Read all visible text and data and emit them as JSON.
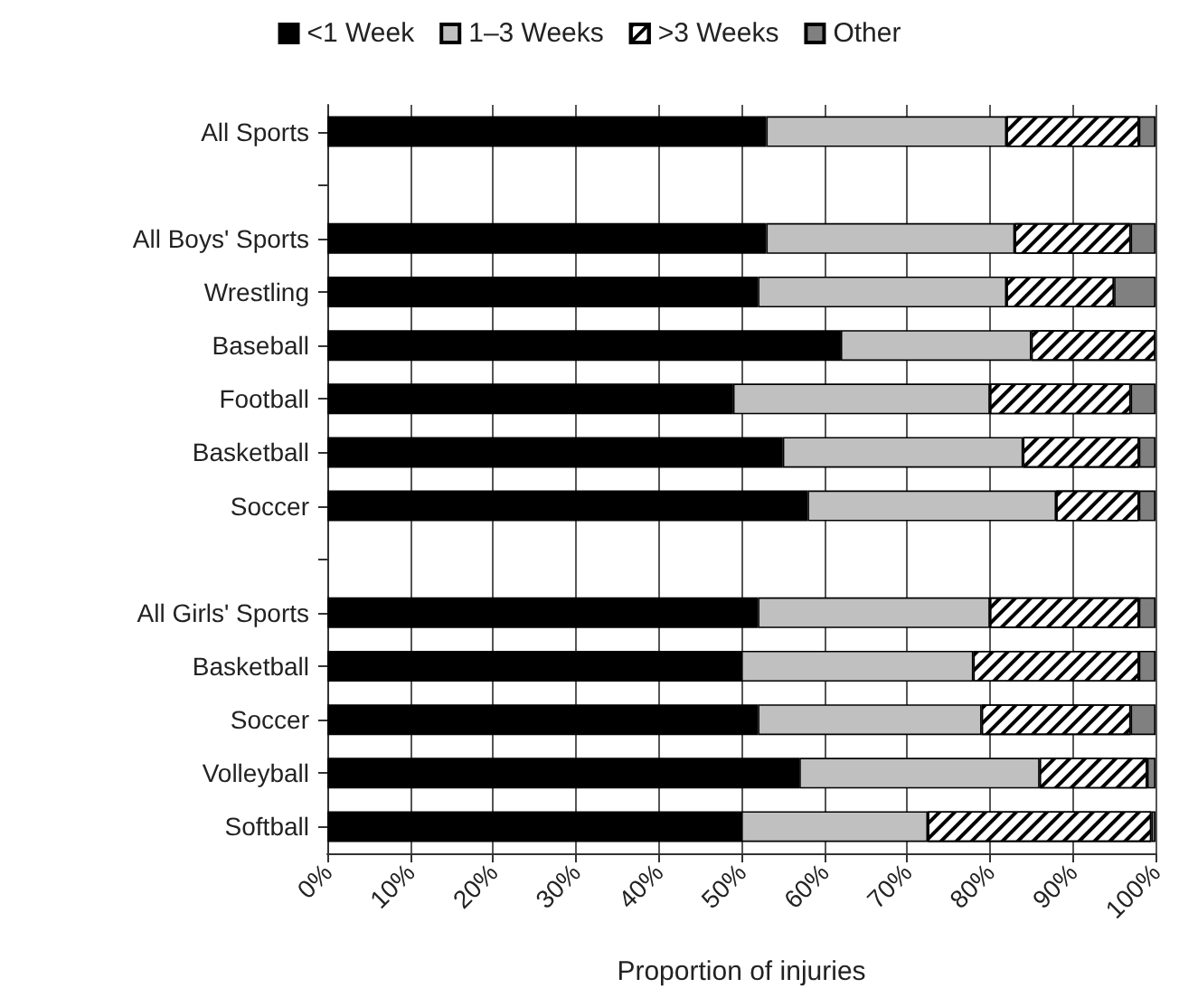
{
  "chart_data": {
    "type": "bar",
    "orientation": "horizontal",
    "stacked": true,
    "xlabel": "Proportion of injuries",
    "categories": [
      "All Sports",
      null,
      "All Boys' Sports",
      "Wrestling",
      "Baseball",
      "Football",
      "Basketball",
      "Soccer",
      null,
      "All Girls' Sports",
      "Basketball",
      "Soccer",
      "Volleyball",
      "Softball"
    ],
    "series": [
      {
        "name": "<1 Week",
        "color": "#000000",
        "values": [
          53,
          null,
          53,
          52,
          62,
          49,
          55,
          58,
          null,
          52,
          50,
          52,
          57,
          50
        ]
      },
      {
        "name": "1–3 Weeks",
        "color": "#c0c0c0",
        "values": [
          29,
          null,
          30,
          30,
          23,
          31,
          29,
          30,
          null,
          28,
          28,
          27,
          29,
          22.5
        ]
      },
      {
        "name": ">3 Weeks",
        "color": "#ffffff",
        "values": [
          16,
          null,
          14,
          13,
          15,
          17,
          14,
          10,
          null,
          18,
          20,
          18,
          13,
          27
        ]
      },
      {
        "name": "Other",
        "color": "#808080",
        "values": [
          2,
          null,
          3,
          5,
          null,
          3,
          2,
          2,
          null,
          2,
          2,
          3,
          1,
          0.5
        ]
      }
    ],
    "xlim": [
      0,
      100
    ],
    "xticks": [
      {
        "value": 0,
        "label": "0%"
      },
      {
        "value": 10,
        "label": "10%"
      },
      {
        "value": 20,
        "label": "20%"
      },
      {
        "value": 30,
        "label": "30%"
      },
      {
        "value": 40,
        "label": "40%"
      },
      {
        "value": 50,
        "label": "50%"
      },
      {
        "value": 60,
        "label": "60%"
      },
      {
        "value": 70,
        "label": "70%"
      },
      {
        "value": 80,
        "label": "80%"
      },
      {
        "value": 90,
        "label": "90%"
      },
      {
        "value": 100,
        "label": "100%"
      }
    ],
    "grid": "x",
    "legend": "top"
  }
}
